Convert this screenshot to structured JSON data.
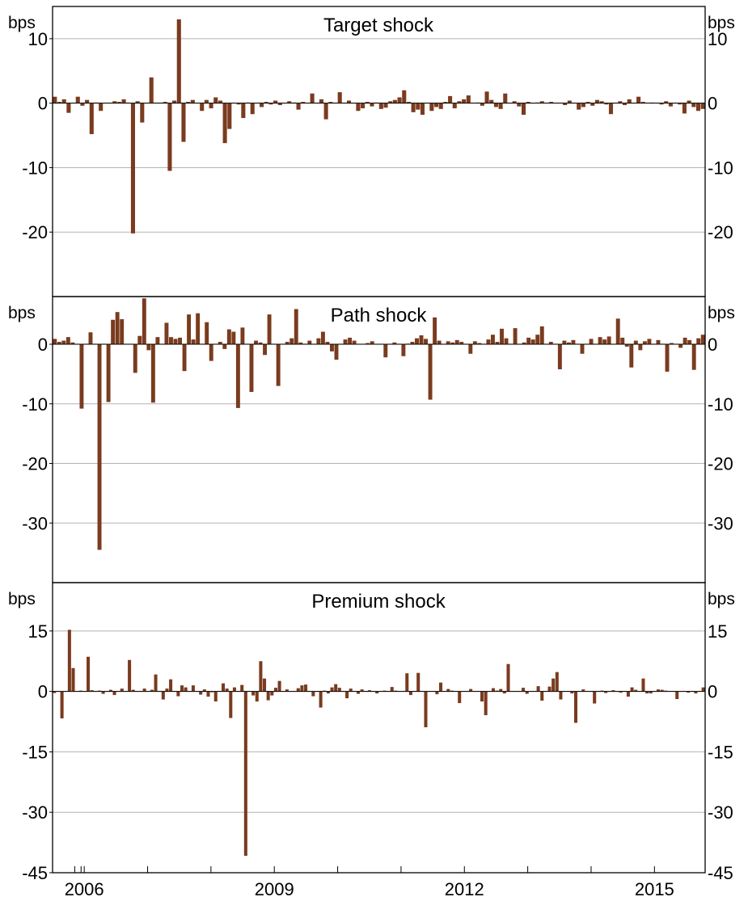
{
  "chart_data": {
    "type": "bar",
    "x_axis": {
      "tick_labels": [
        "2006",
        "2009",
        "2012",
        "2015"
      ],
      "label_years": [
        2006,
        2009,
        2012,
        2015
      ],
      "range": [
        2005.5,
        2015.8
      ]
    },
    "panels": [
      {
        "title": "Target shock",
        "unit": "bps",
        "ylim": [
          -30,
          15
        ],
        "yticks": [
          10,
          0,
          -10,
          -20
        ],
        "color": "#7a3b1e",
        "values": [
          1.0,
          0.2,
          0.6,
          -1.5,
          0.0,
          1.0,
          -0.4,
          0.5,
          -4.8,
          0.1,
          -1.2,
          0.0,
          0.0,
          0.3,
          0.2,
          0.6,
          0.0,
          -20.2,
          0.3,
          -3.0,
          0.0,
          4.0,
          0.0,
          0.0,
          0.2,
          -10.5,
          0.4,
          13.0,
          -6.0,
          0.2,
          0.5,
          0.0,
          -1.2,
          0.5,
          -0.8,
          0.9,
          0.4,
          -6.2,
          -4.0,
          0.0,
          -0.2,
          -2.3,
          0.1,
          -1.7,
          0.0,
          -0.6,
          0.2,
          -0.2,
          0.4,
          -0.3,
          0.0,
          0.3,
          0.1,
          -1.0,
          0.2,
          0.0,
          1.5,
          0.0,
          0.6,
          -2.5,
          0.2,
          0.0,
          1.7,
          0.0,
          0.4,
          0.0,
          -1.2,
          -0.8,
          0.2,
          -0.5,
          0.1,
          -0.9,
          -0.7,
          0.3,
          0.5,
          0.9,
          2.0,
          0.2,
          -1.4,
          -1.0,
          -1.8,
          0.0,
          -1.2,
          -0.6,
          -0.9,
          0.2,
          1.1,
          -0.8,
          0.3,
          0.6,
          1.2,
          0.0,
          0.1,
          -0.4,
          1.8,
          0.5,
          -0.6,
          -0.9,
          1.5,
          0.0,
          0.3,
          -0.5,
          -1.8,
          0.2,
          0.0,
          0.1,
          0.3,
          0.0,
          0.2,
          0.0,
          0.0,
          -0.3,
          0.4,
          0.0,
          -1.0,
          -0.6,
          0.2,
          -0.4,
          0.5,
          0.3,
          -0.2,
          -1.7,
          0.0,
          0.3,
          -0.3,
          0.6,
          0.0,
          1.0,
          0.2,
          0.0,
          0.1,
          0.0,
          -0.2,
          0.3,
          -0.5,
          0.0,
          -0.2,
          -1.6,
          0.4,
          -0.6,
          -1.2,
          -0.9
        ]
      },
      {
        "title": "Path shock",
        "unit": "bps",
        "ylim": [
          -40,
          8
        ],
        "yticks": [
          0,
          -10,
          -20,
          -30
        ],
        "color": "#7a3b1e",
        "values": [
          0.9,
          0.4,
          0.6,
          1.2,
          0.3,
          0.0,
          -10.8,
          0.0,
          2.0,
          0.0,
          -34.5,
          0.0,
          -9.7,
          4.1,
          5.4,
          4.2,
          0.0,
          0.0,
          -4.8,
          1.4,
          7.7,
          -1.0,
          -9.8,
          1.2,
          0.0,
          3.6,
          1.2,
          0.9,
          1.1,
          -4.5,
          5.0,
          0.8,
          5.2,
          0.0,
          3.7,
          -2.8,
          0.0,
          0.4,
          -0.8,
          2.5,
          2.1,
          -10.7,
          2.8,
          0.0,
          -8.0,
          0.6,
          0.3,
          -1.8,
          5.0,
          0.0,
          -7.0,
          0.0,
          0.4,
          1.0,
          5.9,
          0.3,
          0.0,
          0.6,
          0.0,
          1.0,
          2.1,
          0.4,
          -1.2,
          -2.6,
          0.0,
          0.8,
          1.1,
          0.6,
          0.0,
          0.0,
          0.2,
          0.5,
          0.0,
          0.0,
          -2.2,
          0.0,
          0.3,
          0.0,
          -2.0,
          0.1,
          0.4,
          1.0,
          1.5,
          0.9,
          -9.3,
          4.5,
          0.6,
          0.0,
          0.5,
          0.3,
          0.7,
          0.4,
          0.0,
          -1.6,
          0.5,
          0.2,
          0.0,
          0.8,
          1.6,
          0.4,
          2.6,
          1.0,
          0.0,
          2.7,
          0.0,
          0.3,
          1.1,
          0.8,
          1.6,
          3.0,
          0.0,
          0.4,
          0.0,
          -4.2,
          0.6,
          0.3,
          0.7,
          0.0,
          -1.6,
          0.0,
          0.9,
          0.0,
          1.2,
          0.8,
          1.3,
          0.0,
          4.3,
          1.1,
          -0.4,
          -3.9,
          0.6,
          -1.0,
          0.5,
          0.9,
          0.0,
          0.7,
          0.0,
          -4.6,
          0.2,
          0.0,
          -0.6,
          1.1,
          0.7,
          -4.3,
          1.0,
          1.6
        ]
      },
      {
        "title": "Premium shock",
        "unit": "bps",
        "ylim": [
          -45,
          27
        ],
        "yticks": [
          15,
          0,
          -15,
          -30,
          -45
        ],
        "color": "#7a3b1e",
        "values": [
          -0.4,
          0.0,
          -6.7,
          0.0,
          15.3,
          5.8,
          0.0,
          0.2,
          0.0,
          8.6,
          0.3,
          0.0,
          0.2,
          -0.6,
          0.0,
          0.4,
          -0.9,
          0.0,
          0.7,
          0.0,
          7.8,
          0.4,
          0.0,
          0.0,
          0.7,
          0.0,
          0.4,
          4.2,
          0.0,
          -2.0,
          0.7,
          3.0,
          0.0,
          -1.2,
          1.5,
          1.0,
          0.0,
          1.5,
          0.0,
          -0.8,
          0.5,
          -1.3,
          -0.2,
          -2.5,
          0.0,
          2.0,
          0.7,
          -6.6,
          1.0,
          0.0,
          1.6,
          -40.8,
          0.0,
          -1.0,
          -2.5,
          7.5,
          3.2,
          -2.2,
          -1.0,
          0.9,
          2.6,
          0.0,
          0.5,
          0.0,
          0.0,
          0.8,
          1.5,
          1.7,
          0.0,
          -1.2,
          0.0,
          -4.0,
          0.2,
          -0.5,
          1.0,
          1.8,
          0.9,
          0.0,
          -1.7,
          0.7,
          0.0,
          -0.6,
          0.5,
          0.0,
          0.3,
          0.0,
          -0.5,
          0.0,
          0.2,
          0.0,
          1.1,
          0.2,
          0.0,
          0.0,
          4.5,
          -0.9,
          0.0,
          4.6,
          0.0,
          -8.9,
          0.0,
          0.0,
          -0.7,
          2.2,
          0.0,
          0.6,
          0.2,
          0.0,
          -2.9,
          0.0,
          0.0,
          0.6,
          0.0,
          0.0,
          -2.5,
          -5.9,
          0.0,
          0.8,
          0.2,
          0.6,
          -0.5,
          6.8,
          0.0,
          0.0,
          0.0,
          0.9,
          -0.6,
          0.0,
          0.0,
          1.3,
          -2.3,
          0.0,
          1.2,
          3.2,
          4.8,
          -2.0,
          0.0,
          0.0,
          -0.5,
          -7.8,
          0.0,
          0.5,
          0.0,
          0.0,
          -3.0,
          0.0,
          0.2,
          -0.4,
          0.0,
          0.3,
          0.0,
          -0.3,
          0.0,
          -1.3,
          1.0,
          0.4,
          0.0,
          3.2,
          -0.5,
          -0.5,
          0.0,
          0.5,
          0.4,
          0.2,
          0.0,
          0.0,
          -1.9,
          0.0,
          0.0,
          -0.3,
          0.0,
          -0.5,
          0.0,
          1.0
        ]
      }
    ]
  }
}
